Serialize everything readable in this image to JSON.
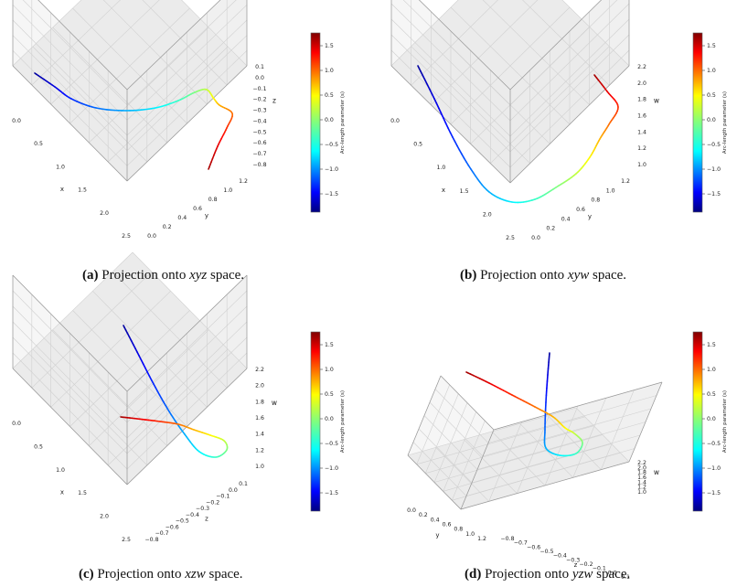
{
  "colorbar_label": "Arc-length parameter (s)",
  "colorbar_ticks": [
    "1.5",
    "1.0",
    "0.5",
    "0.0",
    "−0.5",
    "−1.0",
    "−1.5"
  ],
  "colormap": [
    "#00007f",
    "#0000ff",
    "#007fff",
    "#00ffff",
    "#7fff7f",
    "#ffff00",
    "#ff7f00",
    "#ff0000",
    "#7f0000"
  ],
  "panels": [
    {
      "id": "a",
      "caption": {
        "label": "(a)",
        "pre": "Projection onto",
        "space": "xyz",
        "post": "space."
      },
      "chart_data": {
        "type": "line3d",
        "title": "Projection onto xyz space.",
        "axes": {
          "left": {
            "label": "x",
            "ticks": [
              "0.0",
              "0.5",
              "1.0",
              "1.5",
              "2.0",
              "2.5"
            ]
          },
          "right": {
            "label": "y",
            "ticks": [
              "0.0",
              "0.2",
              "0.4",
              "0.6",
              "0.8",
              "1.0",
              "1.2"
            ]
          },
          "vertical": {
            "label": "z",
            "ticks": [
              "0.1",
              "0.0",
              "−0.1",
              "−0.2",
              "−0.3",
              "−0.4",
              "−0.5",
              "−0.6",
              "−0.7",
              "−0.8"
            ]
          }
        },
        "color_by": "arc-length parameter s",
        "s_range": [
          -1.9,
          1.9
        ]
      }
    },
    {
      "id": "b",
      "caption": {
        "label": "(b)",
        "pre": "Projection onto",
        "space": "xyw",
        "post": "space."
      },
      "chart_data": {
        "type": "line3d",
        "title": "Projection onto xyw space.",
        "axes": {
          "left": {
            "label": "x",
            "ticks": [
              "0.0",
              "0.5",
              "1.0",
              "1.5",
              "2.0",
              "2.5"
            ]
          },
          "right": {
            "label": "y",
            "ticks": [
              "0.0",
              "0.2",
              "0.4",
              "0.6",
              "0.8",
              "1.0",
              "1.2"
            ]
          },
          "vertical": {
            "label": "w",
            "ticks": [
              "2.2",
              "2.0",
              "1.8",
              "1.6",
              "1.4",
              "1.2",
              "1.0"
            ]
          }
        },
        "color_by": "arc-length parameter s",
        "s_range": [
          -1.9,
          1.9
        ]
      }
    },
    {
      "id": "c",
      "caption": {
        "label": "(c)",
        "pre": "Projection onto",
        "space": "xzw",
        "post": "space."
      },
      "chart_data": {
        "type": "line3d",
        "title": "Projection onto xzw space.",
        "axes": {
          "left": {
            "label": "x",
            "ticks": [
              "0.0",
              "0.5",
              "1.0",
              "1.5",
              "2.0",
              "2.5"
            ]
          },
          "right": {
            "label": "z",
            "ticks": [
              "−0.8",
              "−0.7",
              "−0.6",
              "−0.5",
              "−0.4",
              "−0.3",
              "−0.2",
              "−0.1",
              "0.0",
              "0.1"
            ]
          },
          "vertical": {
            "label": "w",
            "ticks": [
              "2.2",
              "2.0",
              "1.8",
              "1.6",
              "1.4",
              "1.2",
              "1.0"
            ]
          }
        },
        "color_by": "arc-length parameter s",
        "s_range": [
          -1.9,
          1.9
        ]
      }
    },
    {
      "id": "d",
      "caption": {
        "label": "(d)",
        "pre": "Projection onto",
        "space": "yzw",
        "post": "space."
      },
      "chart_data": {
        "type": "line3d",
        "title": "Projection onto yzw space.",
        "axes": {
          "left": {
            "label": "y",
            "ticks": [
              "0.0",
              "0.2",
              "0.4",
              "0.6",
              "0.8",
              "1.0",
              "1.2"
            ]
          },
          "right": {
            "label": "z",
            "ticks": [
              "−0.8",
              "−0.7",
              "−0.6",
              "−0.5",
              "−0.4",
              "−0.3",
              "−0.2",
              "−0.1",
              "0.0",
              "0.1"
            ]
          },
          "vertical": {
            "label": "w",
            "ticks": [
              "2.2",
              "2.0",
              "1.8",
              "1.6",
              "1.4",
              "1.2",
              "1.0"
            ]
          }
        },
        "color_by": "arc-length parameter s",
        "s_range": [
          -1.9,
          1.9
        ]
      }
    }
  ]
}
